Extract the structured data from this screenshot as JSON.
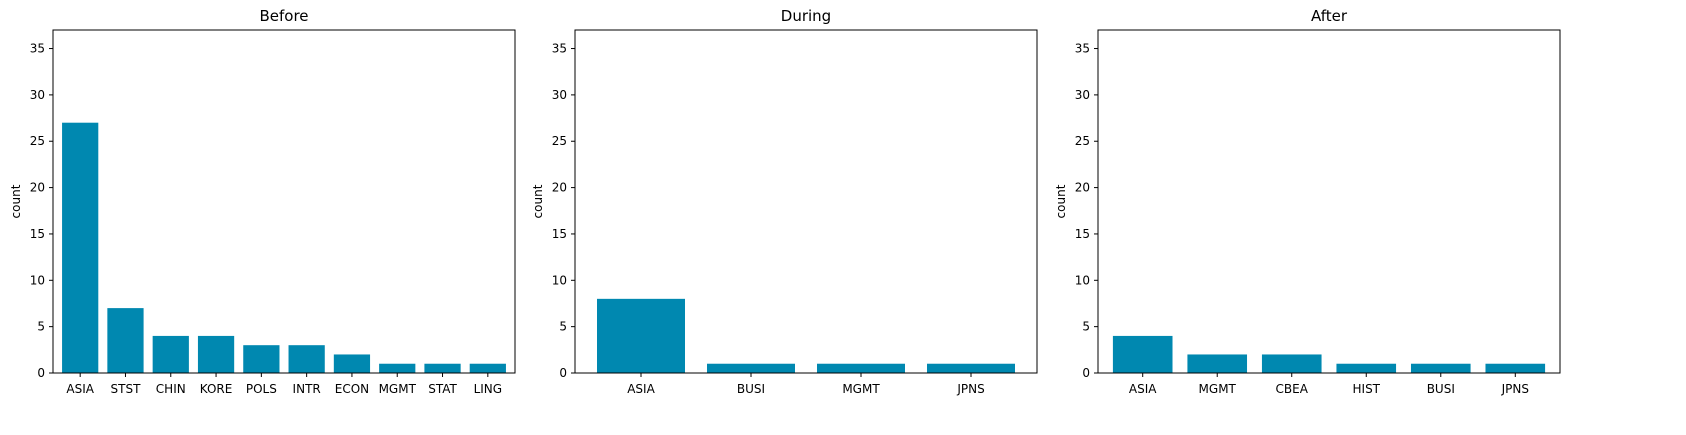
{
  "chart_data": [
    {
      "type": "bar",
      "title": "Before",
      "xlabel": "",
      "ylabel": "count",
      "categories": [
        "ASIA",
        "STST",
        "CHIN",
        "KORE",
        "POLS",
        "INTR",
        "ECON",
        "MGMT",
        "STAT",
        "LING"
      ],
      "values": [
        27,
        7,
        4,
        4,
        3,
        3,
        2,
        1,
        1,
        1
      ],
      "ylim": [
        0,
        37
      ],
      "yticks": [
        0,
        5,
        10,
        15,
        20,
        25,
        30,
        35
      ],
      "color": "#0088b0",
      "grid": false
    },
    {
      "type": "bar",
      "title": "During",
      "xlabel": "",
      "ylabel": "count",
      "categories": [
        "ASIA",
        "BUSI",
        "MGMT",
        "JPNS"
      ],
      "values": [
        8,
        1,
        1,
        1
      ],
      "ylim": [
        0,
        37
      ],
      "yticks": [
        0,
        5,
        10,
        15,
        20,
        25,
        30,
        35
      ],
      "color": "#0088b0",
      "grid": false
    },
    {
      "type": "bar",
      "title": "After",
      "xlabel": "",
      "ylabel": "count",
      "categories": [
        "ASIA",
        "MGMT",
        "CBEA",
        "HIST",
        "BUSI",
        "JPNS"
      ],
      "values": [
        4,
        2,
        2,
        1,
        1,
        1
      ],
      "ylim": [
        0,
        37
      ],
      "yticks": [
        0,
        5,
        10,
        15,
        20,
        25,
        30,
        35
      ],
      "color": "#0088b0",
      "grid": false
    }
  ]
}
